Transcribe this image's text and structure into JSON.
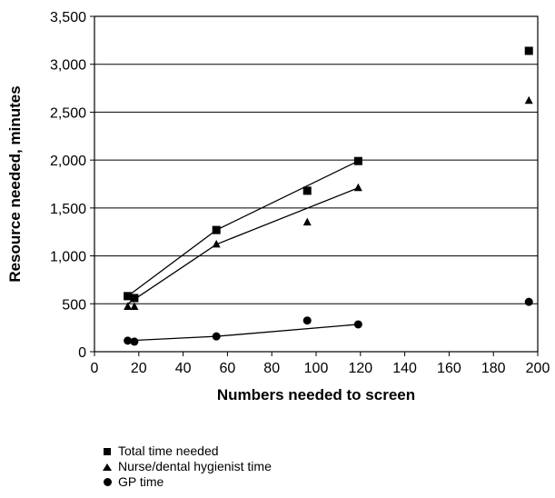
{
  "chart_data": {
    "type": "scatter",
    "xlabel": "Numbers needed to screen",
    "ylabel": "Resource needed, minutes",
    "xlim": [
      0,
      200
    ],
    "ylim": [
      0,
      3500
    ],
    "x_ticks": [
      0,
      20,
      40,
      60,
      80,
      100,
      120,
      140,
      160,
      180,
      200
    ],
    "y_ticks": [
      0,
      500,
      1000,
      1500,
      2000,
      2500,
      3000,
      3500
    ],
    "x_tick_labels": [
      "0",
      "20",
      "40",
      "60",
      "80",
      "100",
      "120",
      "140",
      "160",
      "180",
      "200"
    ],
    "y_tick_labels": [
      "0",
      "500",
      "1,000",
      "1,500",
      "2,000",
      "2,500",
      "3,000",
      "3,500"
    ],
    "grid": "horizontal",
    "legend_position": "bottom-left",
    "series": [
      {
        "name": "Total time needed",
        "marker": "square",
        "points": [
          [
            15,
            580
          ],
          [
            18,
            560
          ],
          [
            55,
            1270
          ],
          [
            96,
            1680
          ],
          [
            119,
            1990
          ],
          [
            196,
            3140
          ]
        ],
        "fit_line": [
          [
            15,
            580
          ],
          [
            55,
            1270
          ],
          [
            119,
            1990
          ]
        ]
      },
      {
        "name": "Nurse/dental hygienist time",
        "marker": "triangle",
        "points": [
          [
            15,
            470
          ],
          [
            18,
            470
          ],
          [
            55,
            1120
          ],
          [
            96,
            1350
          ],
          [
            119,
            1710
          ],
          [
            196,
            2620
          ]
        ],
        "fit_line": [
          [
            15,
            500
          ],
          [
            55,
            1120
          ],
          [
            119,
            1710
          ]
        ]
      },
      {
        "name": "GP time",
        "marker": "circle",
        "points": [
          [
            15,
            115
          ],
          [
            18,
            105
          ],
          [
            55,
            160
          ],
          [
            96,
            325
          ],
          [
            119,
            285
          ],
          [
            196,
            520
          ]
        ],
        "fit_line": [
          [
            15,
            115
          ],
          [
            55,
            160
          ],
          [
            119,
            285
          ]
        ]
      }
    ]
  }
}
